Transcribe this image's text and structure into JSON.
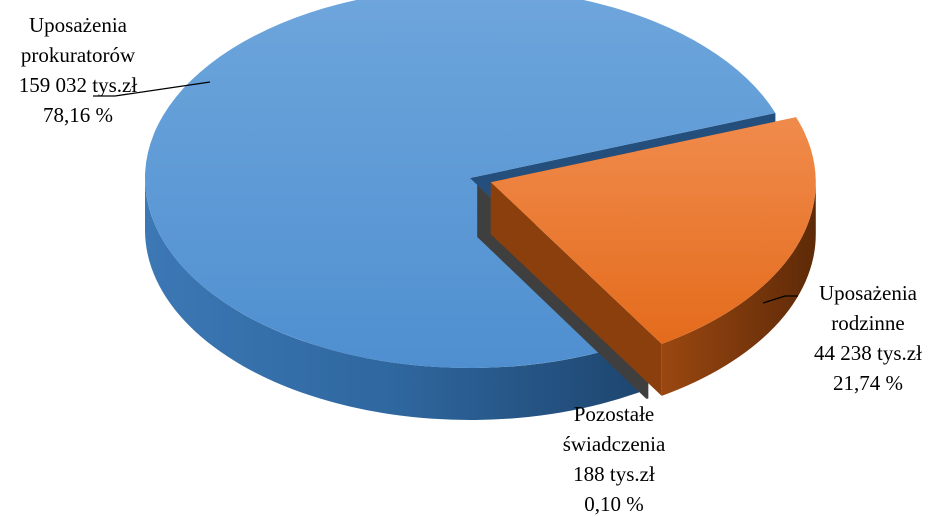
{
  "chart_data": {
    "type": "pie",
    "title": "",
    "unit": "tys.zł",
    "slices": [
      {
        "label_lines": [
          "Uposażenia",
          "prokuratorów"
        ],
        "value": 159032,
        "value_text": "159 032 tys.zł",
        "percent": 78.16,
        "percent_text": "78,16 %",
        "color": "#5b9bd5"
      },
      {
        "label_lines": [
          "Uposażenia",
          "rodzinne"
        ],
        "value": 44238,
        "value_text": "44 238 tys.zł",
        "percent": 21.74,
        "percent_text": "21,74 %",
        "color": "#ed7d31"
      },
      {
        "label_lines": [
          "Pozostałe",
          "świadczenia"
        ],
        "value": 188,
        "value_text": "188 tys.zł",
        "percent": 0.1,
        "percent_text": "0,10 %",
        "color": "#7f7f7f"
      }
    ]
  }
}
